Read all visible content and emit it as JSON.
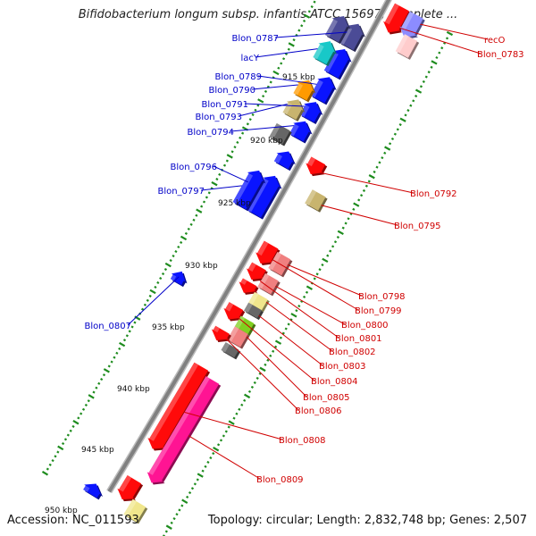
{
  "title": "Bifidobacterium longum subsp. infantis ATCC 15697, complete ...",
  "footer": {
    "accession": "Accession: NC_011593",
    "summary": "Topology: circular; Length: 2,832,748 bp; Genes: 2,507"
  },
  "colors": {
    "forward_label": "#0000c8",
    "reverse_label": "#d00000",
    "backbone": "#808080",
    "tick": "#1e8c1e",
    "blue": "#0a14ff",
    "red": "#ff0a0a",
    "pink": "#ff1493",
    "salmon": "#f08080",
    "navy": "#4b4b96",
    "cyan": "#18c8c8",
    "orange": "#ff9a00",
    "khaki": "#c8b46e",
    "yellow": "#f0e68c",
    "grey": "#666666",
    "lime": "#80d020",
    "lavender": "#8c8cff"
  },
  "kbp_labels": [
    "915 kbp",
    "920 kbp",
    "925 kbp",
    "930 kbp",
    "935 kbp",
    "940 kbp",
    "945 kbp",
    "950 kbp"
  ],
  "forward_genes": [
    "Blon_0787",
    "lacY",
    "Blon_0789",
    "Blon_0790",
    "Blon_0791",
    "Blon_0793",
    "Blon_0794",
    "Blon_0796",
    "Blon_0797",
    "Blon_0807"
  ],
  "reverse_genes": [
    "recO",
    "Blon_0783",
    "Blon_0792",
    "Blon_0795",
    "Blon_0798",
    "Blon_0799",
    "Blon_0800",
    "Blon_0801",
    "Blon_0802",
    "Blon_0803",
    "Blon_0804",
    "Blon_0805",
    "Blon_0806",
    "Blon_0808",
    "Blon_0809"
  ]
}
